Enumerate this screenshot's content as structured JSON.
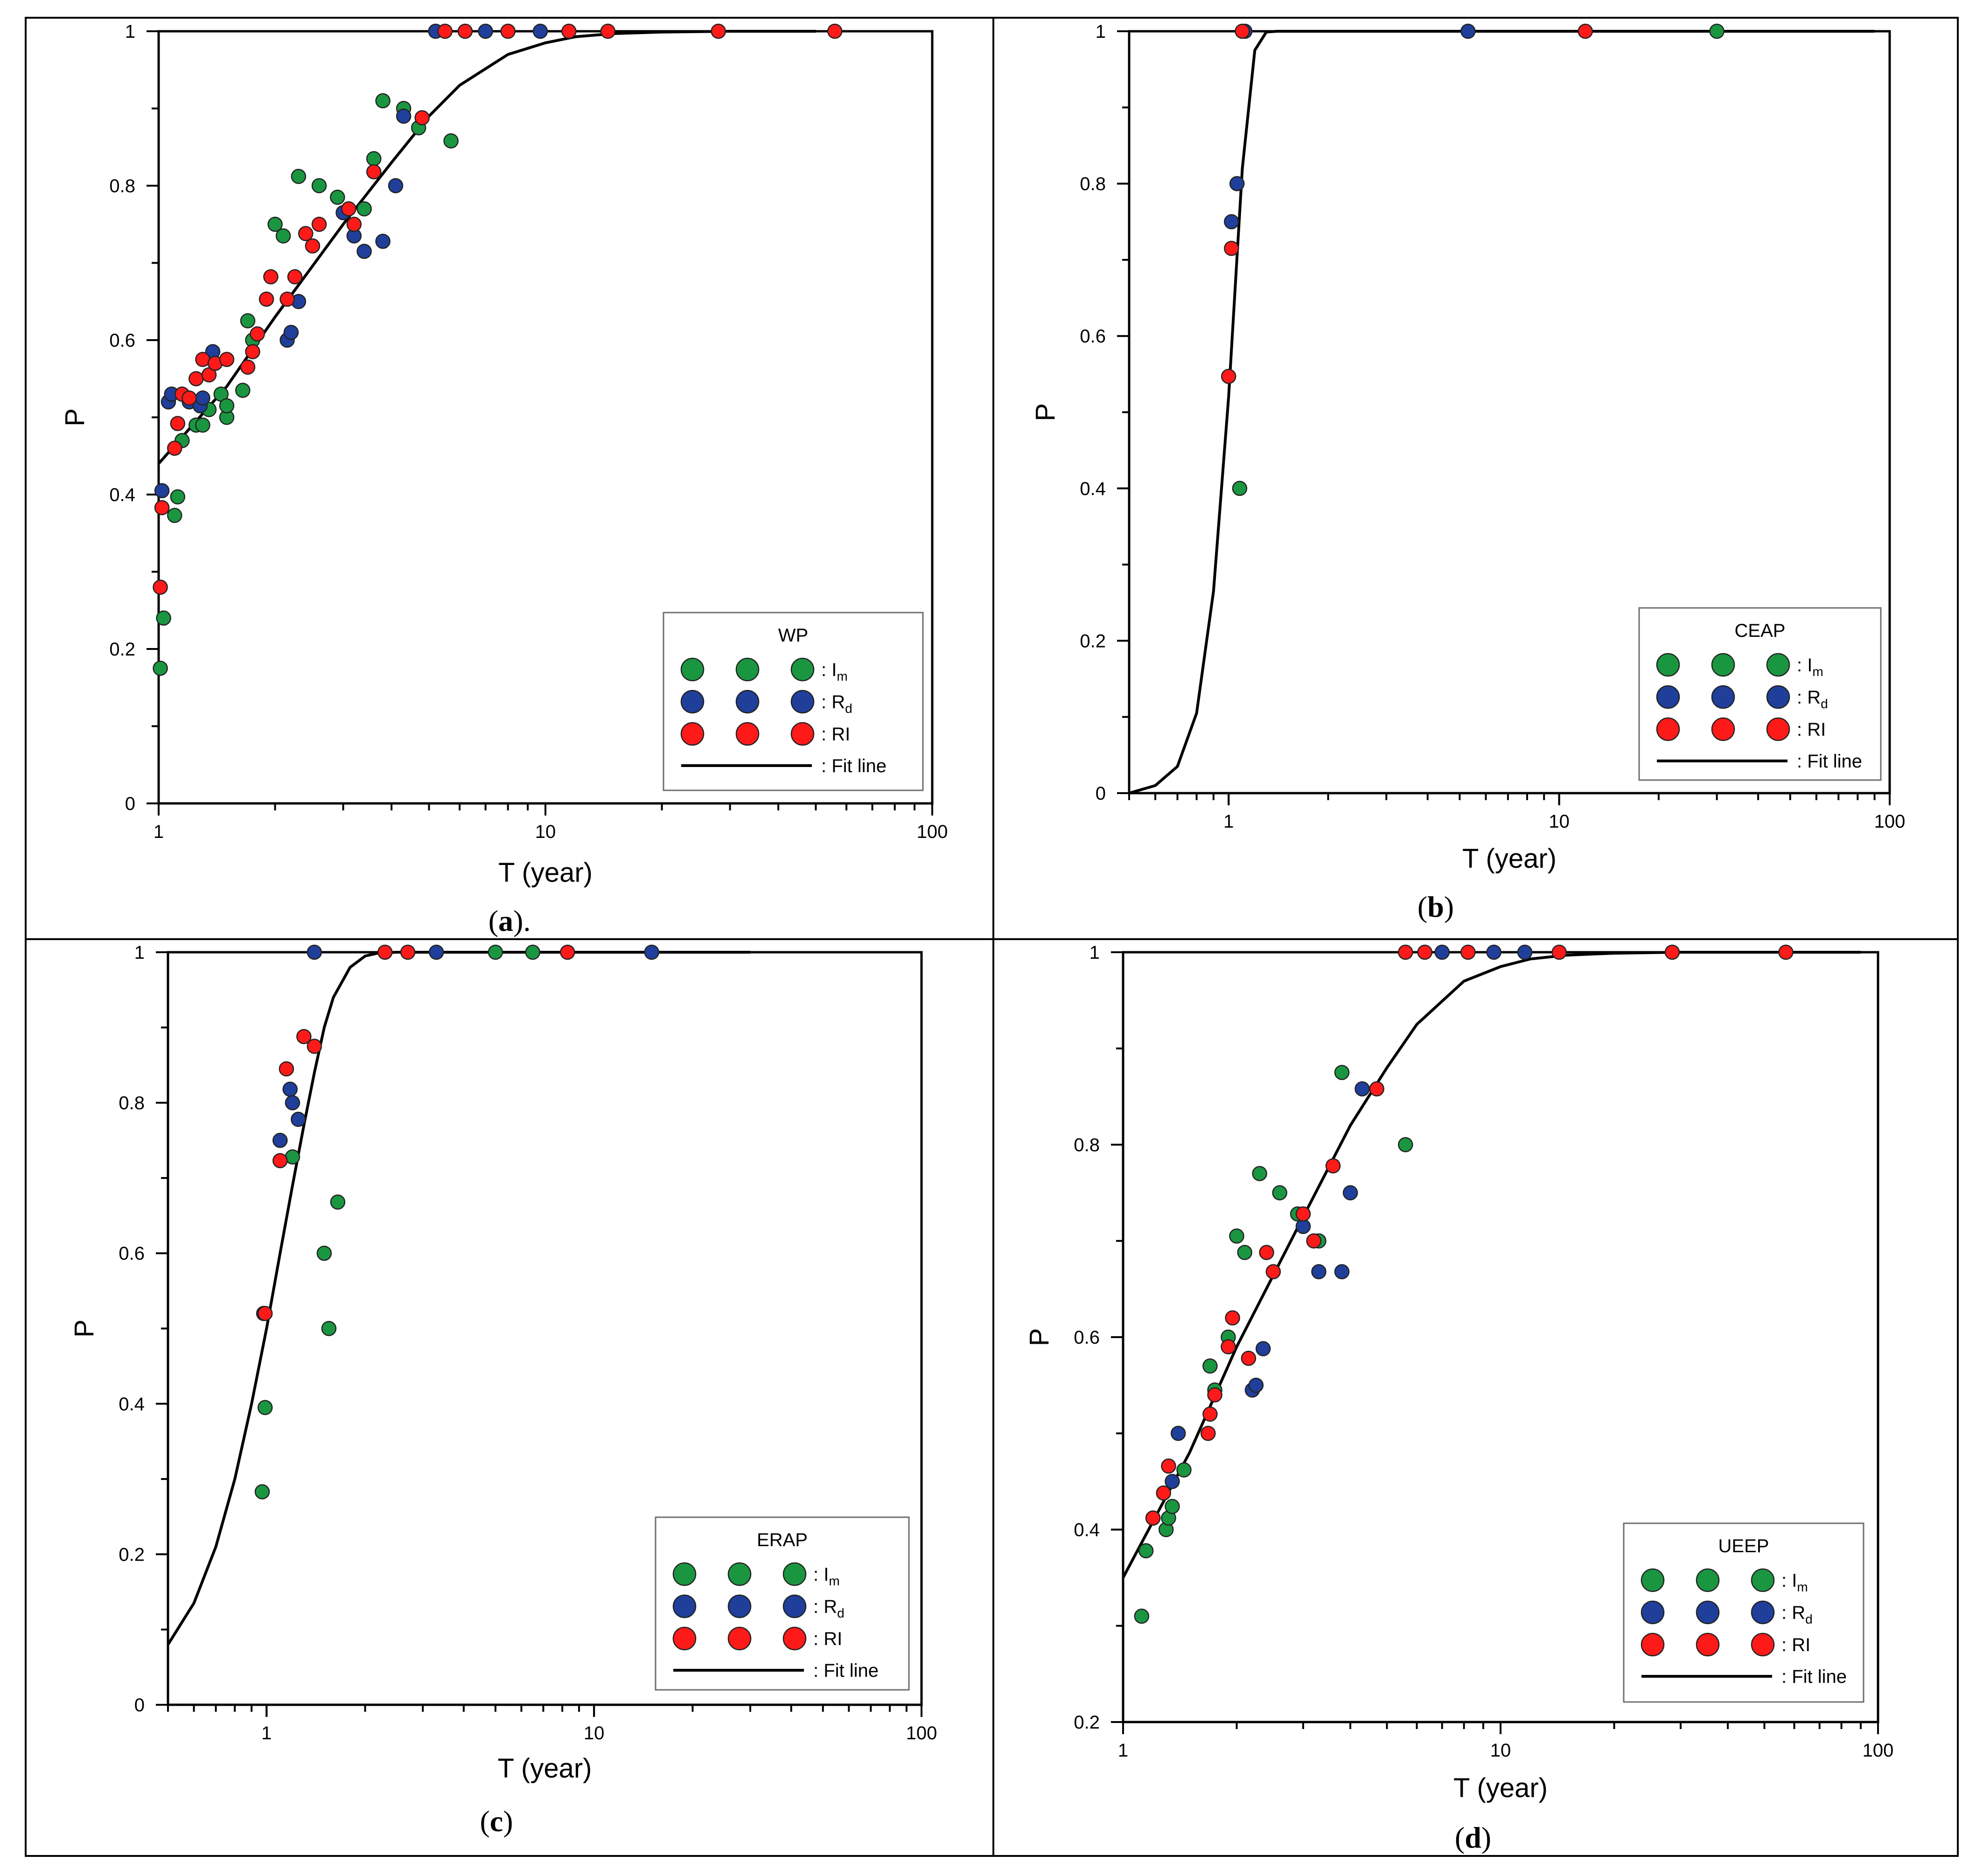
{
  "colors": {
    "Im": "#1a9641",
    "Rd": "#1f3f9a",
    "RI": "#ff1a1a",
    "fit": "#000000",
    "frame": "#000000"
  },
  "legend_labels": {
    "Im_main": "I",
    "Im_sub": "m",
    "Rd_main": "R",
    "Rd_sub": "d",
    "RI": "RI",
    "fit": "Fit line",
    "sep": ": "
  },
  "chart_data": [
    {
      "id": "a",
      "type": "scatter",
      "title": "WP",
      "panel_label_letter": "a",
      "panel_label_open": "(",
      "panel_label_close": ").",
      "xlabel": "T (year)",
      "ylabel": "P",
      "xscale": "log",
      "xlim": [
        1,
        100
      ],
      "ylim": [
        0,
        1
      ],
      "xticks": [
        {
          "v": 1,
          "label": "1"
        },
        {
          "v": 10,
          "label": "10"
        },
        {
          "v": 100,
          "label": "100"
        }
      ],
      "yticks": [
        {
          "v": 0,
          "label": "0"
        },
        {
          "v": 0.2,
          "label": "0.2"
        },
        {
          "v": 0.4,
          "label": "0.4"
        },
        {
          "v": 0.6,
          "label": "0.6"
        },
        {
          "v": 0.8,
          "label": "0.8"
        },
        {
          "v": 1,
          "label": "1"
        }
      ],
      "legend_position": "bottom-right",
      "fit_line": {
        "x": [
          1,
          1.5,
          2,
          3,
          4,
          5,
          6,
          8,
          10,
          12,
          15,
          20,
          30,
          50
        ],
        "y": [
          0.44,
          0.54,
          0.63,
          0.75,
          0.83,
          0.89,
          0.93,
          0.97,
          0.985,
          0.993,
          0.997,
          0.999,
          1,
          1
        ]
      },
      "series": [
        {
          "name": "Im",
          "points": [
            [
              1.01,
              0.175
            ],
            [
              1.03,
              0.24
            ],
            [
              1.1,
              0.373
            ],
            [
              1.12,
              0.397
            ],
            [
              1.15,
              0.47
            ],
            [
              1.25,
              0.49
            ],
            [
              1.3,
              0.49
            ],
            [
              1.35,
              0.51
            ],
            [
              1.45,
              0.53
            ],
            [
              1.5,
              0.5
            ],
            [
              1.5,
              0.515
            ],
            [
              1.65,
              0.535
            ],
            [
              1.7,
              0.625
            ],
            [
              1.75,
              0.6
            ],
            [
              2.0,
              0.75
            ],
            [
              2.1,
              0.735
            ],
            [
              2.3,
              0.812
            ],
            [
              2.6,
              0.8
            ],
            [
              2.9,
              0.785
            ],
            [
              3.4,
              0.77
            ],
            [
              3.6,
              0.835
            ],
            [
              3.8,
              0.91
            ],
            [
              4.3,
              0.9
            ],
            [
              4.7,
              0.875
            ],
            [
              5.7,
              0.858
            ]
          ]
        },
        {
          "name": "Rd",
          "points": [
            [
              1.02,
              0.405
            ],
            [
              1.06,
              0.52
            ],
            [
              1.08,
              0.53
            ],
            [
              1.2,
              0.52
            ],
            [
              1.28,
              0.515
            ],
            [
              1.3,
              0.525
            ],
            [
              1.38,
              0.585
            ],
            [
              2.15,
              0.6
            ],
            [
              2.2,
              0.61
            ],
            [
              2.3,
              0.65
            ],
            [
              3.0,
              0.765
            ],
            [
              3.2,
              0.735
            ],
            [
              3.4,
              0.715
            ],
            [
              3.8,
              0.728
            ],
            [
              4.1,
              0.8
            ],
            [
              4.3,
              0.89
            ],
            [
              5.2,
              1
            ],
            [
              7.0,
              1
            ],
            [
              9.7,
              1
            ]
          ]
        },
        {
          "name": "RI",
          "points": [
            [
              1.01,
              0.28
            ],
            [
              1.02,
              0.383
            ],
            [
              1.1,
              0.46
            ],
            [
              1.12,
              0.492
            ],
            [
              1.15,
              0.53
            ],
            [
              1.2,
              0.525
            ],
            [
              1.25,
              0.55
            ],
            [
              1.3,
              0.575
            ],
            [
              1.35,
              0.555
            ],
            [
              1.4,
              0.57
            ],
            [
              1.5,
              0.575
            ],
            [
              1.7,
              0.565
            ],
            [
              1.75,
              0.585
            ],
            [
              1.8,
              0.608
            ],
            [
              1.9,
              0.653
            ],
            [
              1.95,
              0.682
            ],
            [
              2.15,
              0.653
            ],
            [
              2.25,
              0.682
            ],
            [
              2.4,
              0.738
            ],
            [
              2.5,
              0.722
            ],
            [
              2.6,
              0.75
            ],
            [
              3.1,
              0.77
            ],
            [
              3.2,
              0.75
            ],
            [
              3.6,
              0.818
            ],
            [
              4.8,
              0.888
            ],
            [
              5.5,
              1
            ],
            [
              6.2,
              1
            ],
            [
              8.0,
              1
            ],
            [
              11.5,
              1
            ],
            [
              14.5,
              1
            ],
            [
              28,
              1
            ],
            [
              56,
              1
            ]
          ]
        }
      ]
    },
    {
      "id": "b",
      "type": "scatter",
      "title": "CEAP",
      "panel_label_letter": "b",
      "panel_label_open": "(",
      "panel_label_close": ")",
      "xlabel": "T (year)",
      "ylabel": "P",
      "xscale": "log",
      "xlim": [
        0.5,
        100
      ],
      "ylim": [
        0,
        1
      ],
      "xticks": [
        {
          "v": 1,
          "label": "1"
        },
        {
          "v": 10,
          "label": "10"
        },
        {
          "v": 100,
          "label": "100"
        }
      ],
      "yticks": [
        {
          "v": 0,
          "label": "0"
        },
        {
          "v": 0.2,
          "label": "0.2"
        },
        {
          "v": 0.4,
          "label": "0.4"
        },
        {
          "v": 0.6,
          "label": "0.6"
        },
        {
          "v": 0.8,
          "label": "0.8"
        },
        {
          "v": 1,
          "label": "1"
        }
      ],
      "legend_position": "bottom-right",
      "fit_line": {
        "x": [
          0.5,
          0.6,
          0.7,
          0.8,
          0.9,
          1.0,
          1.1,
          1.2,
          1.3,
          1.4,
          2,
          5,
          10,
          30,
          90
        ],
        "y": [
          0.0,
          0.01,
          0.035,
          0.105,
          0.265,
          0.52,
          0.82,
          0.975,
          0.999,
          1,
          1,
          1,
          1,
          1,
          1
        ]
      },
      "series": [
        {
          "name": "Im",
          "points": [
            [
              1.08,
              0.4
            ],
            [
              30,
              1
            ]
          ]
        },
        {
          "name": "Rd",
          "points": [
            [
              1.02,
              0.75
            ],
            [
              1.06,
              0.8
            ],
            [
              1.12,
              1
            ],
            [
              5.3,
              1
            ]
          ]
        },
        {
          "name": "RI",
          "points": [
            [
              1.0,
              0.547
            ],
            [
              1.02,
              0.715
            ],
            [
              1.1,
              1
            ],
            [
              12,
              1
            ]
          ]
        }
      ]
    },
    {
      "id": "c",
      "type": "scatter",
      "title": "ERAP",
      "panel_label_letter": "c",
      "panel_label_open": "(",
      "panel_label_close": ")",
      "xlabel": "T (year)",
      "ylabel": "P",
      "xscale": "log",
      "xlim": [
        0.5,
        100
      ],
      "ylim": [
        0,
        1
      ],
      "xticks": [
        {
          "v": 1,
          "label": "1"
        },
        {
          "v": 10,
          "label": "10"
        },
        {
          "v": 100,
          "label": "100"
        }
      ],
      "yticks": [
        {
          "v": 0,
          "label": "0"
        },
        {
          "v": 0.2,
          "label": "0.2"
        },
        {
          "v": 0.4,
          "label": "0.4"
        },
        {
          "v": 0.6,
          "label": "0.6"
        },
        {
          "v": 0.8,
          "label": "0.8"
        },
        {
          "v": 1,
          "label": "1"
        }
      ],
      "legend_position": "bottom-right",
      "fit_line": {
        "x": [
          0.5,
          0.6,
          0.7,
          0.8,
          0.9,
          1.0,
          1.1,
          1.2,
          1.3,
          1.4,
          1.5,
          1.6,
          1.8,
          2.0,
          2.2,
          2.5,
          3,
          5,
          10,
          30
        ],
        "y": [
          0.08,
          0.135,
          0.21,
          0.3,
          0.4,
          0.5,
          0.6,
          0.69,
          0.77,
          0.84,
          0.9,
          0.94,
          0.98,
          0.995,
          0.999,
          1,
          1,
          1,
          1,
          1
        ]
      },
      "series": [
        {
          "name": "Im",
          "points": [
            [
              0.97,
              0.283
            ],
            [
              0.99,
              0.395
            ],
            [
              1.2,
              0.728
            ],
            [
              1.5,
              0.6
            ],
            [
              1.55,
              0.5
            ],
            [
              1.65,
              0.668
            ],
            [
              5.0,
              1
            ],
            [
              6.5,
              1
            ]
          ]
        },
        {
          "name": "Rd",
          "points": [
            [
              0.98,
              0.52
            ],
            [
              1.1,
              0.75
            ],
            [
              1.18,
              0.818
            ],
            [
              1.2,
              0.8
            ],
            [
              1.25,
              0.778
            ],
            [
              1.4,
              1
            ],
            [
              3.3,
              1
            ],
            [
              15,
              1
            ]
          ]
        },
        {
          "name": "RI",
          "points": [
            [
              0.99,
              0.52
            ],
            [
              1.1,
              0.723
            ],
            [
              1.15,
              0.845
            ],
            [
              1.3,
              0.888
            ],
            [
              1.4,
              0.875
            ],
            [
              2.3,
              1
            ],
            [
              2.7,
              1
            ],
            [
              8.3,
              1
            ]
          ]
        }
      ]
    },
    {
      "id": "d",
      "type": "scatter",
      "title": "UEEP",
      "panel_label_letter": "d",
      "panel_label_open": "(",
      "panel_label_close": ")",
      "xlabel": "T (year)",
      "ylabel": "P",
      "xscale": "log",
      "xlim": [
        1,
        100
      ],
      "ylim": [
        0.2,
        1
      ],
      "xticks": [
        {
          "v": 1,
          "label": "1"
        },
        {
          "v": 10,
          "label": "10"
        },
        {
          "v": 100,
          "label": "100"
        }
      ],
      "yticks": [
        {
          "v": 0.2,
          "label": "0.2"
        },
        {
          "v": 0.4,
          "label": "0.4"
        },
        {
          "v": 0.6,
          "label": "0.6"
        },
        {
          "v": 0.8,
          "label": "0.8"
        },
        {
          "v": 1,
          "label": "1"
        }
      ],
      "legend_position": "bottom-right",
      "fit_line": {
        "x": [
          1,
          1.5,
          2,
          3,
          4,
          5,
          6,
          8,
          10,
          12,
          15,
          20,
          30,
          50,
          90
        ],
        "y": [
          0.35,
          0.48,
          0.59,
          0.725,
          0.82,
          0.88,
          0.925,
          0.97,
          0.985,
          0.993,
          0.997,
          0.999,
          1,
          1,
          1
        ]
      },
      "series": [
        {
          "name": "Im",
          "points": [
            [
              1.12,
              0.31
            ],
            [
              1.15,
              0.378
            ],
            [
              1.3,
              0.4
            ],
            [
              1.32,
              0.412
            ],
            [
              1.35,
              0.424
            ],
            [
              1.45,
              0.462
            ],
            [
              1.7,
              0.57
            ],
            [
              1.75,
              0.545
            ],
            [
              1.9,
              0.6
            ],
            [
              2.0,
              0.705
            ],
            [
              2.1,
              0.688
            ],
            [
              2.3,
              0.77
            ],
            [
              2.6,
              0.75
            ],
            [
              2.9,
              0.728
            ],
            [
              3.3,
              0.7
            ],
            [
              3.8,
              0.875
            ],
            [
              5.6,
              0.8
            ]
          ]
        },
        {
          "name": "Rd",
          "points": [
            [
              1.2,
              0.412
            ],
            [
              1.35,
              0.45
            ],
            [
              1.4,
              0.5
            ],
            [
              2.2,
              0.545
            ],
            [
              2.25,
              0.55
            ],
            [
              2.35,
              0.588
            ],
            [
              3.0,
              0.715
            ],
            [
              3.3,
              0.668
            ],
            [
              3.8,
              0.668
            ],
            [
              4.0,
              0.75
            ],
            [
              4.3,
              0.858
            ],
            [
              7.0,
              1
            ],
            [
              9.6,
              1
            ],
            [
              11.6,
              1
            ]
          ]
        },
        {
          "name": "RI",
          "points": [
            [
              1.2,
              0.412
            ],
            [
              1.28,
              0.438
            ],
            [
              1.32,
              0.466
            ],
            [
              1.68,
              0.5
            ],
            [
              1.7,
              0.52
            ],
            [
              1.75,
              0.54
            ],
            [
              1.9,
              0.59
            ],
            [
              1.95,
              0.62
            ],
            [
              2.15,
              0.578
            ],
            [
              2.4,
              0.688
            ],
            [
              2.5,
              0.668
            ],
            [
              3.0,
              0.728
            ],
            [
              3.2,
              0.7
            ],
            [
              3.6,
              0.778
            ],
            [
              4.7,
              0.858
            ],
            [
              5.6,
              1
            ],
            [
              6.3,
              1
            ],
            [
              8.2,
              1
            ],
            [
              14.3,
              1
            ],
            [
              28.5,
              1
            ],
            [
              57,
              1
            ]
          ]
        }
      ]
    }
  ]
}
